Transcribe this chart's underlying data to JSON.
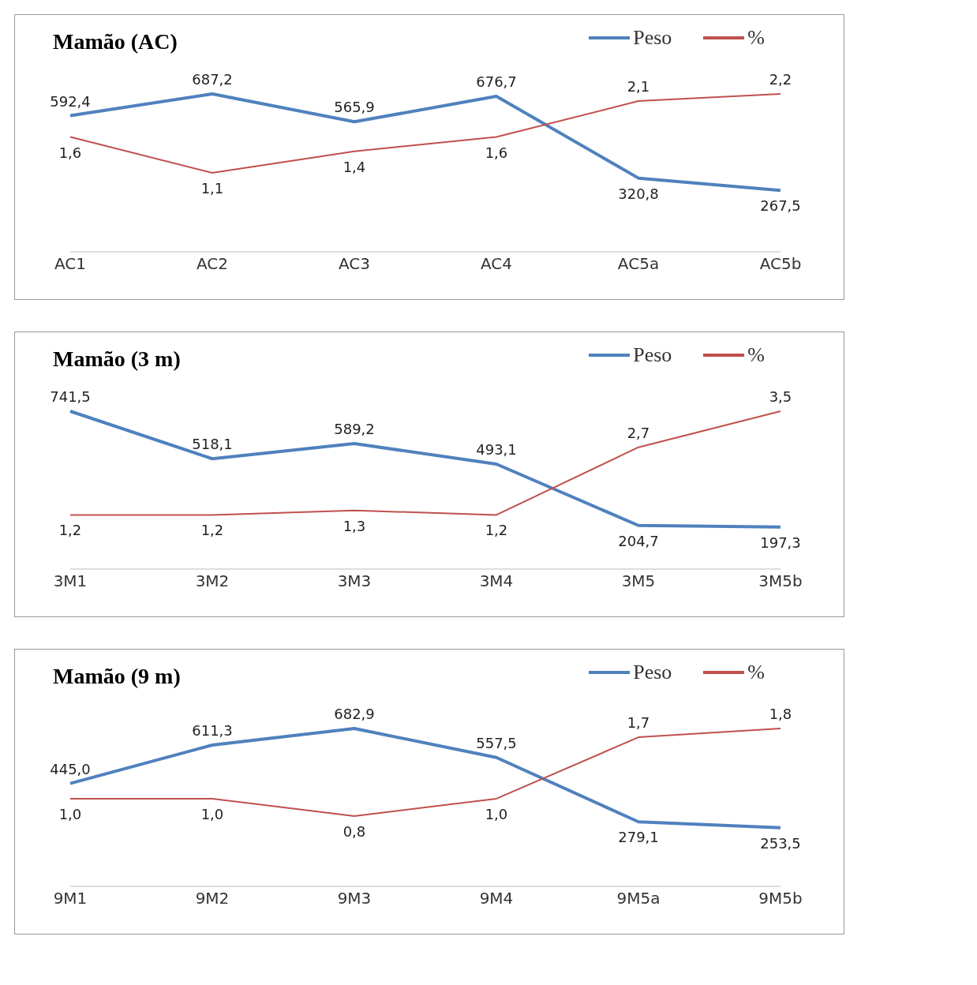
{
  "chart_data": [
    {
      "type": "line",
      "title": "Mamão (AC)",
      "categories": [
        "AC1",
        "AC2",
        "AC3",
        "AC4",
        "AC5a",
        "AC5b"
      ],
      "legend": "top right",
      "marker": "none",
      "series": [
        {
          "name": "Peso",
          "color": "#4f81bd",
          "values": [
            592.4,
            687.2,
            565.9,
            676.7,
            320.8,
            267.5
          ],
          "value_labels": [
            "592,4",
            "687,2",
            "565,9",
            "676,7",
            "320,8",
            "267,5"
          ]
        },
        {
          "name": "%",
          "color": "#c0504d",
          "axis": "y2",
          "values": [
            1.6,
            1.1,
            1.4,
            1.6,
            2.1,
            2.2
          ],
          "value_labels": [
            "1,6",
            "1,1",
            "1,4",
            "1,6",
            "2,1",
            "2,2"
          ]
        }
      ]
    },
    {
      "type": "line",
      "title": "Mamão (3 m)",
      "categories": [
        "3M1",
        "3M2",
        "3M3",
        "3M4",
        "3M5",
        "3M5b"
      ],
      "legend": "top right",
      "marker": "none",
      "series": [
        {
          "name": "Peso",
          "color": "#4f81bd",
          "values": [
            741.5,
            518.1,
            589.2,
            493.1,
            204.7,
            197.3
          ],
          "value_labels": [
            "741,5",
            "518,1",
            "589,2",
            "493,1",
            "204,7",
            "197,3"
          ]
        },
        {
          "name": "%",
          "color": "#c0504d",
          "axis": "y2",
          "values": [
            1.2,
            1.2,
            1.3,
            1.2,
            2.7,
            3.5
          ],
          "value_labels": [
            "1,2",
            "1,2",
            "1,3",
            "1,2",
            "2,7",
            "3,5"
          ]
        }
      ]
    },
    {
      "type": "line",
      "title": "Mamão (9 m)",
      "categories": [
        "9M1",
        "9M2",
        "9M3",
        "9M4",
        "9M5a",
        "9M5b"
      ],
      "legend": "top right",
      "marker": "none",
      "series": [
        {
          "name": "Peso",
          "color": "#4f81bd",
          "values": [
            445.0,
            611.3,
            682.9,
            557.5,
            279.1,
            253.5
          ],
          "value_labels": [
            "445,0",
            "611,3",
            "682,9",
            "557,5",
            "279,1",
            "253,5"
          ]
        },
        {
          "name": "%",
          "color": "#c0504d",
          "axis": "y2",
          "values": [
            1.0,
            1.0,
            0.8,
            1.0,
            1.7,
            1.8
          ],
          "value_labels": [
            "1,0",
            "1,0",
            "0,8",
            "1,0",
            "1,7",
            "1,8"
          ]
        }
      ]
    }
  ]
}
